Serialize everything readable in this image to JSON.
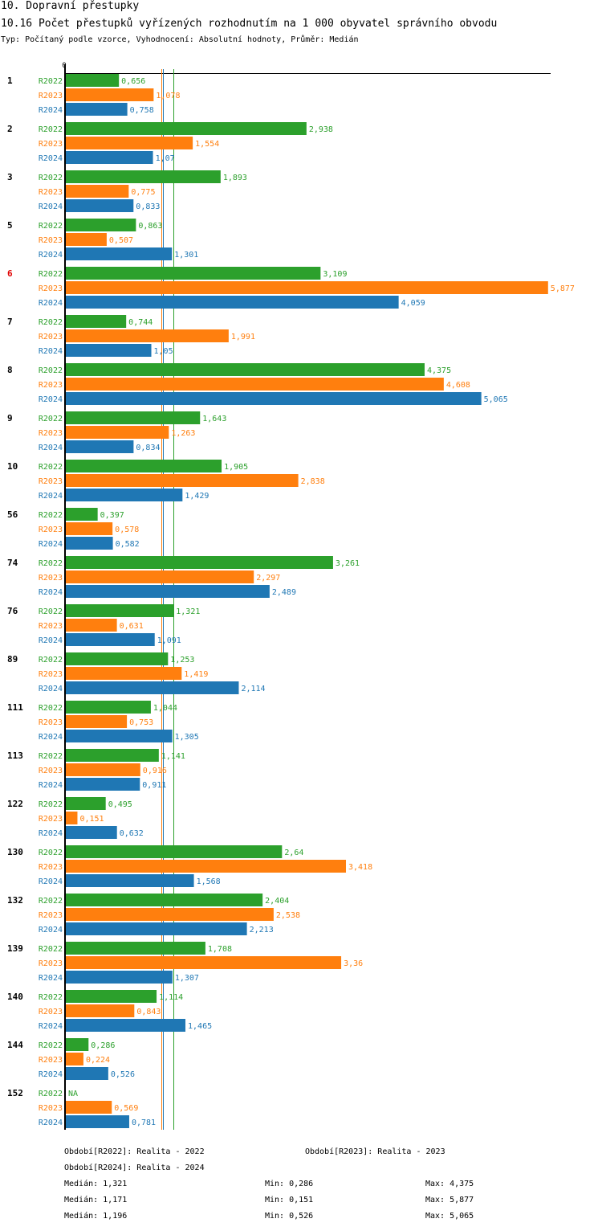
{
  "header": {
    "title": "10. Dopravní přestupky",
    "chart_title": "10.16 Počet přestupků vyřízených rozhodnutím na 1 000 obyvatel správního obvodu",
    "subtitle": "Typ: Počítaný podle vzorce, Vyhodnocení: Absolutní hodnoty, Průměr: Medián"
  },
  "colors": {
    "R2022": "#2ca02c",
    "R2023": "#ff7f0e",
    "R2024": "#1f77b4",
    "highlight": "#e00000",
    "axis": "#000000"
  },
  "chart_data": {
    "type": "bar",
    "orientation": "horizontal",
    "title": "10.16 Počet přestupků vyřízených rozhodnutím na 1 000 obyvatel správního obvodu",
    "xlabel": "",
    "ylabel": "",
    "xlim": [
      0,
      5.877
    ],
    "x_tick_labels": [
      "0"
    ],
    "grid": false,
    "legend_placement": "bottom",
    "highlighted_category": "6",
    "categories": [
      "1",
      "2",
      "3",
      "5",
      "6",
      "7",
      "8",
      "9",
      "10",
      "56",
      "74",
      "76",
      "89",
      "111",
      "113",
      "122",
      "130",
      "132",
      "139",
      "140",
      "144",
      "152"
    ],
    "series": [
      {
        "name": "R2022",
        "label": "Období[R2022]: Realita - 2022",
        "values": [
          0.656,
          2.938,
          1.893,
          0.863,
          3.109,
          0.744,
          4.375,
          1.643,
          1.905,
          0.397,
          3.261,
          1.321,
          1.253,
          1.044,
          1.141,
          0.495,
          2.64,
          2.404,
          1.708,
          1.114,
          0.286,
          null
        ],
        "value_labels": [
          "0,656",
          "2,938",
          "1,893",
          "0,863",
          "3,109",
          "0,744",
          "4,375",
          "1,643",
          "1,905",
          "0,397",
          "3,261",
          "1,321",
          "1,253",
          "1,044",
          "1,141",
          "0,495",
          "2,64",
          "2,404",
          "1,708",
          "1,114",
          "0,286",
          "NA"
        ],
        "median": 1.321,
        "median_label": "Medián: 1,321",
        "min_label": "Min: 0,286",
        "max_label": "Max: 4,375"
      },
      {
        "name": "R2023",
        "label": "Období[R2023]: Realita - 2023",
        "values": [
          1.078,
          1.554,
          0.775,
          0.507,
          5.877,
          1.991,
          4.608,
          1.263,
          2.838,
          0.578,
          2.297,
          0.631,
          1.419,
          0.753,
          0.916,
          0.151,
          3.418,
          2.538,
          3.36,
          0.843,
          0.224,
          0.569
        ],
        "value_labels": [
          "1,078",
          "1,554",
          "0,775",
          "0,507",
          "5,877",
          "1,991",
          "4,608",
          "1,263",
          "2,838",
          "0,578",
          "2,297",
          "0,631",
          "1,419",
          "0,753",
          "0,916",
          "0,151",
          "3,418",
          "2,538",
          "3,36",
          "0,843",
          "0,224",
          "0,569"
        ],
        "median": 1.171,
        "median_label": "Medián: 1,171",
        "min_label": "Min: 0,151",
        "max_label": "Max: 5,877"
      },
      {
        "name": "R2024",
        "label": "Období[R2024]: Realita - 2024",
        "values": [
          0.758,
          1.07,
          0.833,
          1.301,
          4.059,
          1.05,
          5.065,
          0.834,
          1.429,
          0.582,
          2.489,
          1.091,
          2.114,
          1.305,
          0.911,
          0.632,
          1.568,
          2.213,
          1.307,
          1.465,
          0.526,
          0.781
        ],
        "value_labels": [
          "0,758",
          "1,07",
          "0,833",
          "1,301",
          "4,059",
          "1,05",
          "5,065",
          "0,834",
          "1,429",
          "0,582",
          "2,489",
          "1,091",
          "2,114",
          "1,305",
          "0,911",
          "0,632",
          "1,568",
          "2,213",
          "1,307",
          "1,465",
          "0,526",
          "0,781"
        ],
        "median": 1.196,
        "median_label": "Medián: 1,196",
        "min_label": "Min: 0,526",
        "max_label": "Max: 5,065"
      }
    ]
  }
}
